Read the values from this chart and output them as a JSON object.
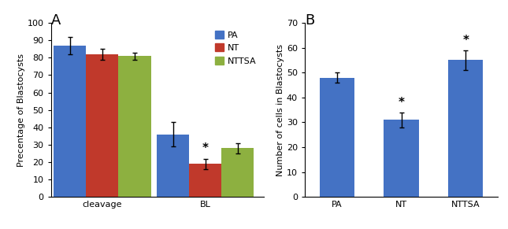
{
  "panel_a": {
    "title": "A",
    "ylabel": "Precentage of Blastocysts",
    "groups": [
      "cleavage",
      "BL"
    ],
    "series": [
      "PA",
      "NT",
      "NTTSA"
    ],
    "colors": [
      "#4472C4",
      "#C0392B",
      "#8DB040"
    ],
    "values": [
      [
        87,
        82,
        81
      ],
      [
        36,
        19,
        28
      ]
    ],
    "errors": [
      [
        5,
        3,
        2
      ],
      [
        7,
        3,
        3
      ]
    ],
    "ylim": [
      0,
      100
    ],
    "yticks": [
      0,
      10,
      20,
      30,
      40,
      50,
      60,
      70,
      80,
      90,
      100
    ]
  },
  "panel_b": {
    "title": "B",
    "ylabel": "Number of cells in Blastocysts",
    "categories": [
      "PA",
      "NT",
      "NTTSA"
    ],
    "color": "#4472C4",
    "values": [
      48,
      31,
      55
    ],
    "errors": [
      2,
      3,
      4
    ],
    "ylim": [
      0,
      70
    ],
    "yticks": [
      0,
      10,
      20,
      30,
      40,
      50,
      60,
      70
    ],
    "asterisk_on": [
      false,
      true,
      true
    ]
  },
  "background_color": "#ffffff"
}
